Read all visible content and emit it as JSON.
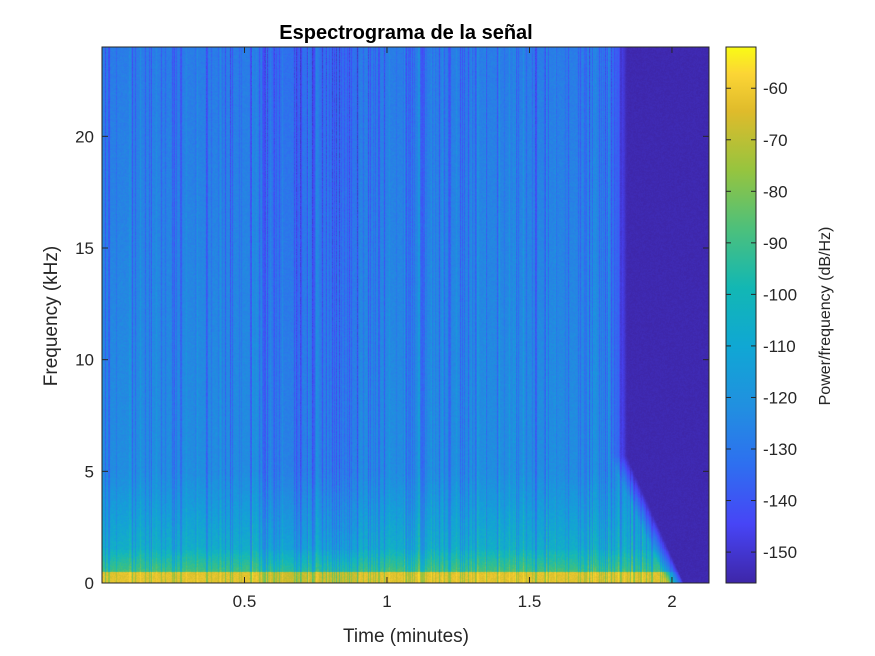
{
  "chart_data": {
    "type": "heatmap",
    "title": "Espectrograma de la señal",
    "xlabel": "Time (minutes)",
    "ylabel": "Frequency (kHz)",
    "xlim": [
      0,
      2.13
    ],
    "ylim": [
      0,
      24
    ],
    "xticks": [
      0.5,
      1,
      1.5,
      2
    ],
    "xtick_labels": [
      "0.5",
      "1",
      "1.5",
      "2"
    ],
    "yticks": [
      0,
      5,
      10,
      15,
      20
    ],
    "ytick_labels": [
      "0",
      "5",
      "10",
      "15",
      "20"
    ],
    "colorbar": {
      "label": "Power/frequency (dB/Hz)",
      "colormap": "parula",
      "clim": [
        -156,
        -52
      ],
      "ticks": [
        -60,
        -70,
        -80,
        -90,
        -100,
        -110,
        -120,
        -130,
        -140,
        -150
      ],
      "tick_labels": [
        "-60",
        "-70",
        "-80",
        "-90",
        "-100",
        "-110",
        "-120",
        "-130",
        "-140",
        "-150"
      ]
    },
    "signal_end_minutes": 1.98,
    "background_level_db": -155,
    "colors": {
      "low": "#3e26a8",
      "mid": "#1ab7ae",
      "high": "#f9fb15"
    }
  }
}
